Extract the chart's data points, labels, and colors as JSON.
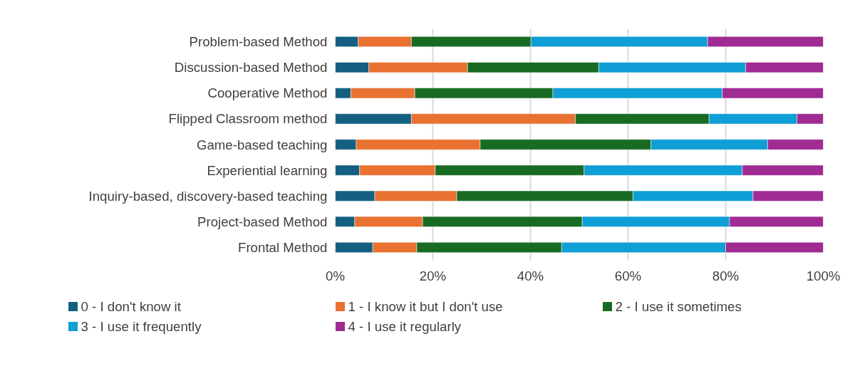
{
  "chart_data": {
    "type": "bar",
    "orientation": "horizontal",
    "stacked": true,
    "categories": [
      "Problem-based Method",
      "Discussion-based Method",
      "Cooperative Method",
      "Flipped Classroom method",
      "Game-based teaching",
      "Experiential learning",
      "Inquiry-based, discovery-based teaching",
      "Project-based Method",
      "Frontal Method"
    ],
    "series": [
      {
        "name": "0 - I don't know it",
        "color": "#156082",
        "values": [
          4.7,
          6.9,
          3.2,
          15.6,
          4.3,
          5.0,
          8.1,
          4.0,
          7.7
        ]
      },
      {
        "name": "1 - I know it but I don't use",
        "color": "#e97132",
        "values": [
          10.9,
          20.2,
          13.1,
          33.6,
          25.4,
          15.5,
          16.8,
          13.9,
          9.0
        ]
      },
      {
        "name": "2 - I use it sometimes",
        "color": "#196b24",
        "values": [
          24.5,
          26.9,
          28.3,
          27.4,
          35.0,
          30.5,
          36.1,
          32.7,
          29.7
        ]
      },
      {
        "name": "3 - I use it frequently",
        "color": "#0f9ed5",
        "values": [
          36.2,
          30.1,
          34.7,
          18.0,
          23.9,
          32.4,
          24.6,
          30.2,
          33.6
        ]
      },
      {
        "name": "4 - I use it regularly",
        "color": "#a02b93",
        "values": [
          23.7,
          15.9,
          20.7,
          5.4,
          11.4,
          16.6,
          14.4,
          19.2,
          20.0
        ]
      }
    ],
    "xlim": [
      0,
      100
    ],
    "xticks": [
      {
        "value": 0,
        "label": "0%"
      },
      {
        "value": 20,
        "label": "20%"
      },
      {
        "value": 40,
        "label": "40%"
      },
      {
        "value": 60,
        "label": "60%"
      },
      {
        "value": 80,
        "label": "80%"
      },
      {
        "value": 100,
        "label": "100%"
      }
    ],
    "grid": "x",
    "legend": "bottom"
  }
}
